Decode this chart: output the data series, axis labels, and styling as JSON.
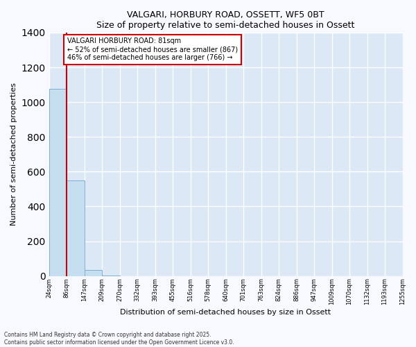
{
  "title1": "VALGARI, HORBURY ROAD, OSSETT, WF5 0BT",
  "title2": "Size of property relative to semi-detached houses in Ossett",
  "xlabel": "Distribution of semi-detached houses by size in Ossett",
  "ylabel": "Number of semi-detached properties",
  "bar_color": "#c5dff0",
  "bar_edge_color": "#7bafd4",
  "background_color": "#dce8f5",
  "grid_color": "#ffffff",
  "bins": [
    "24sqm",
    "86sqm",
    "147sqm",
    "209sqm",
    "270sqm",
    "332sqm",
    "393sqm",
    "455sqm",
    "516sqm",
    "578sqm",
    "640sqm",
    "701sqm",
    "763sqm",
    "824sqm",
    "886sqm",
    "947sqm",
    "1009sqm",
    "1070sqm",
    "1132sqm",
    "1193sqm",
    "1255sqm"
  ],
  "values": [
    1075,
    550,
    35,
    3,
    0,
    0,
    0,
    0,
    0,
    0,
    0,
    0,
    0,
    0,
    0,
    0,
    0,
    0,
    0,
    0
  ],
  "property_size_bin": 1,
  "property_line_color": "#cc0000",
  "annotation_text": "VALGARI HORBURY ROAD: 81sqm\n← 52% of semi-detached houses are smaller (867)\n46% of semi-detached houses are larger (766) →",
  "annotation_box_color": "#ffffff",
  "annotation_box_edge_color": "#cc0000",
  "ylim": [
    0,
    1400
  ],
  "fig_background": "#f8f8ff",
  "footnote1": "Contains HM Land Registry data © Crown copyright and database right 2025.",
  "footnote2": "Contains public sector information licensed under the Open Government Licence v3.0."
}
